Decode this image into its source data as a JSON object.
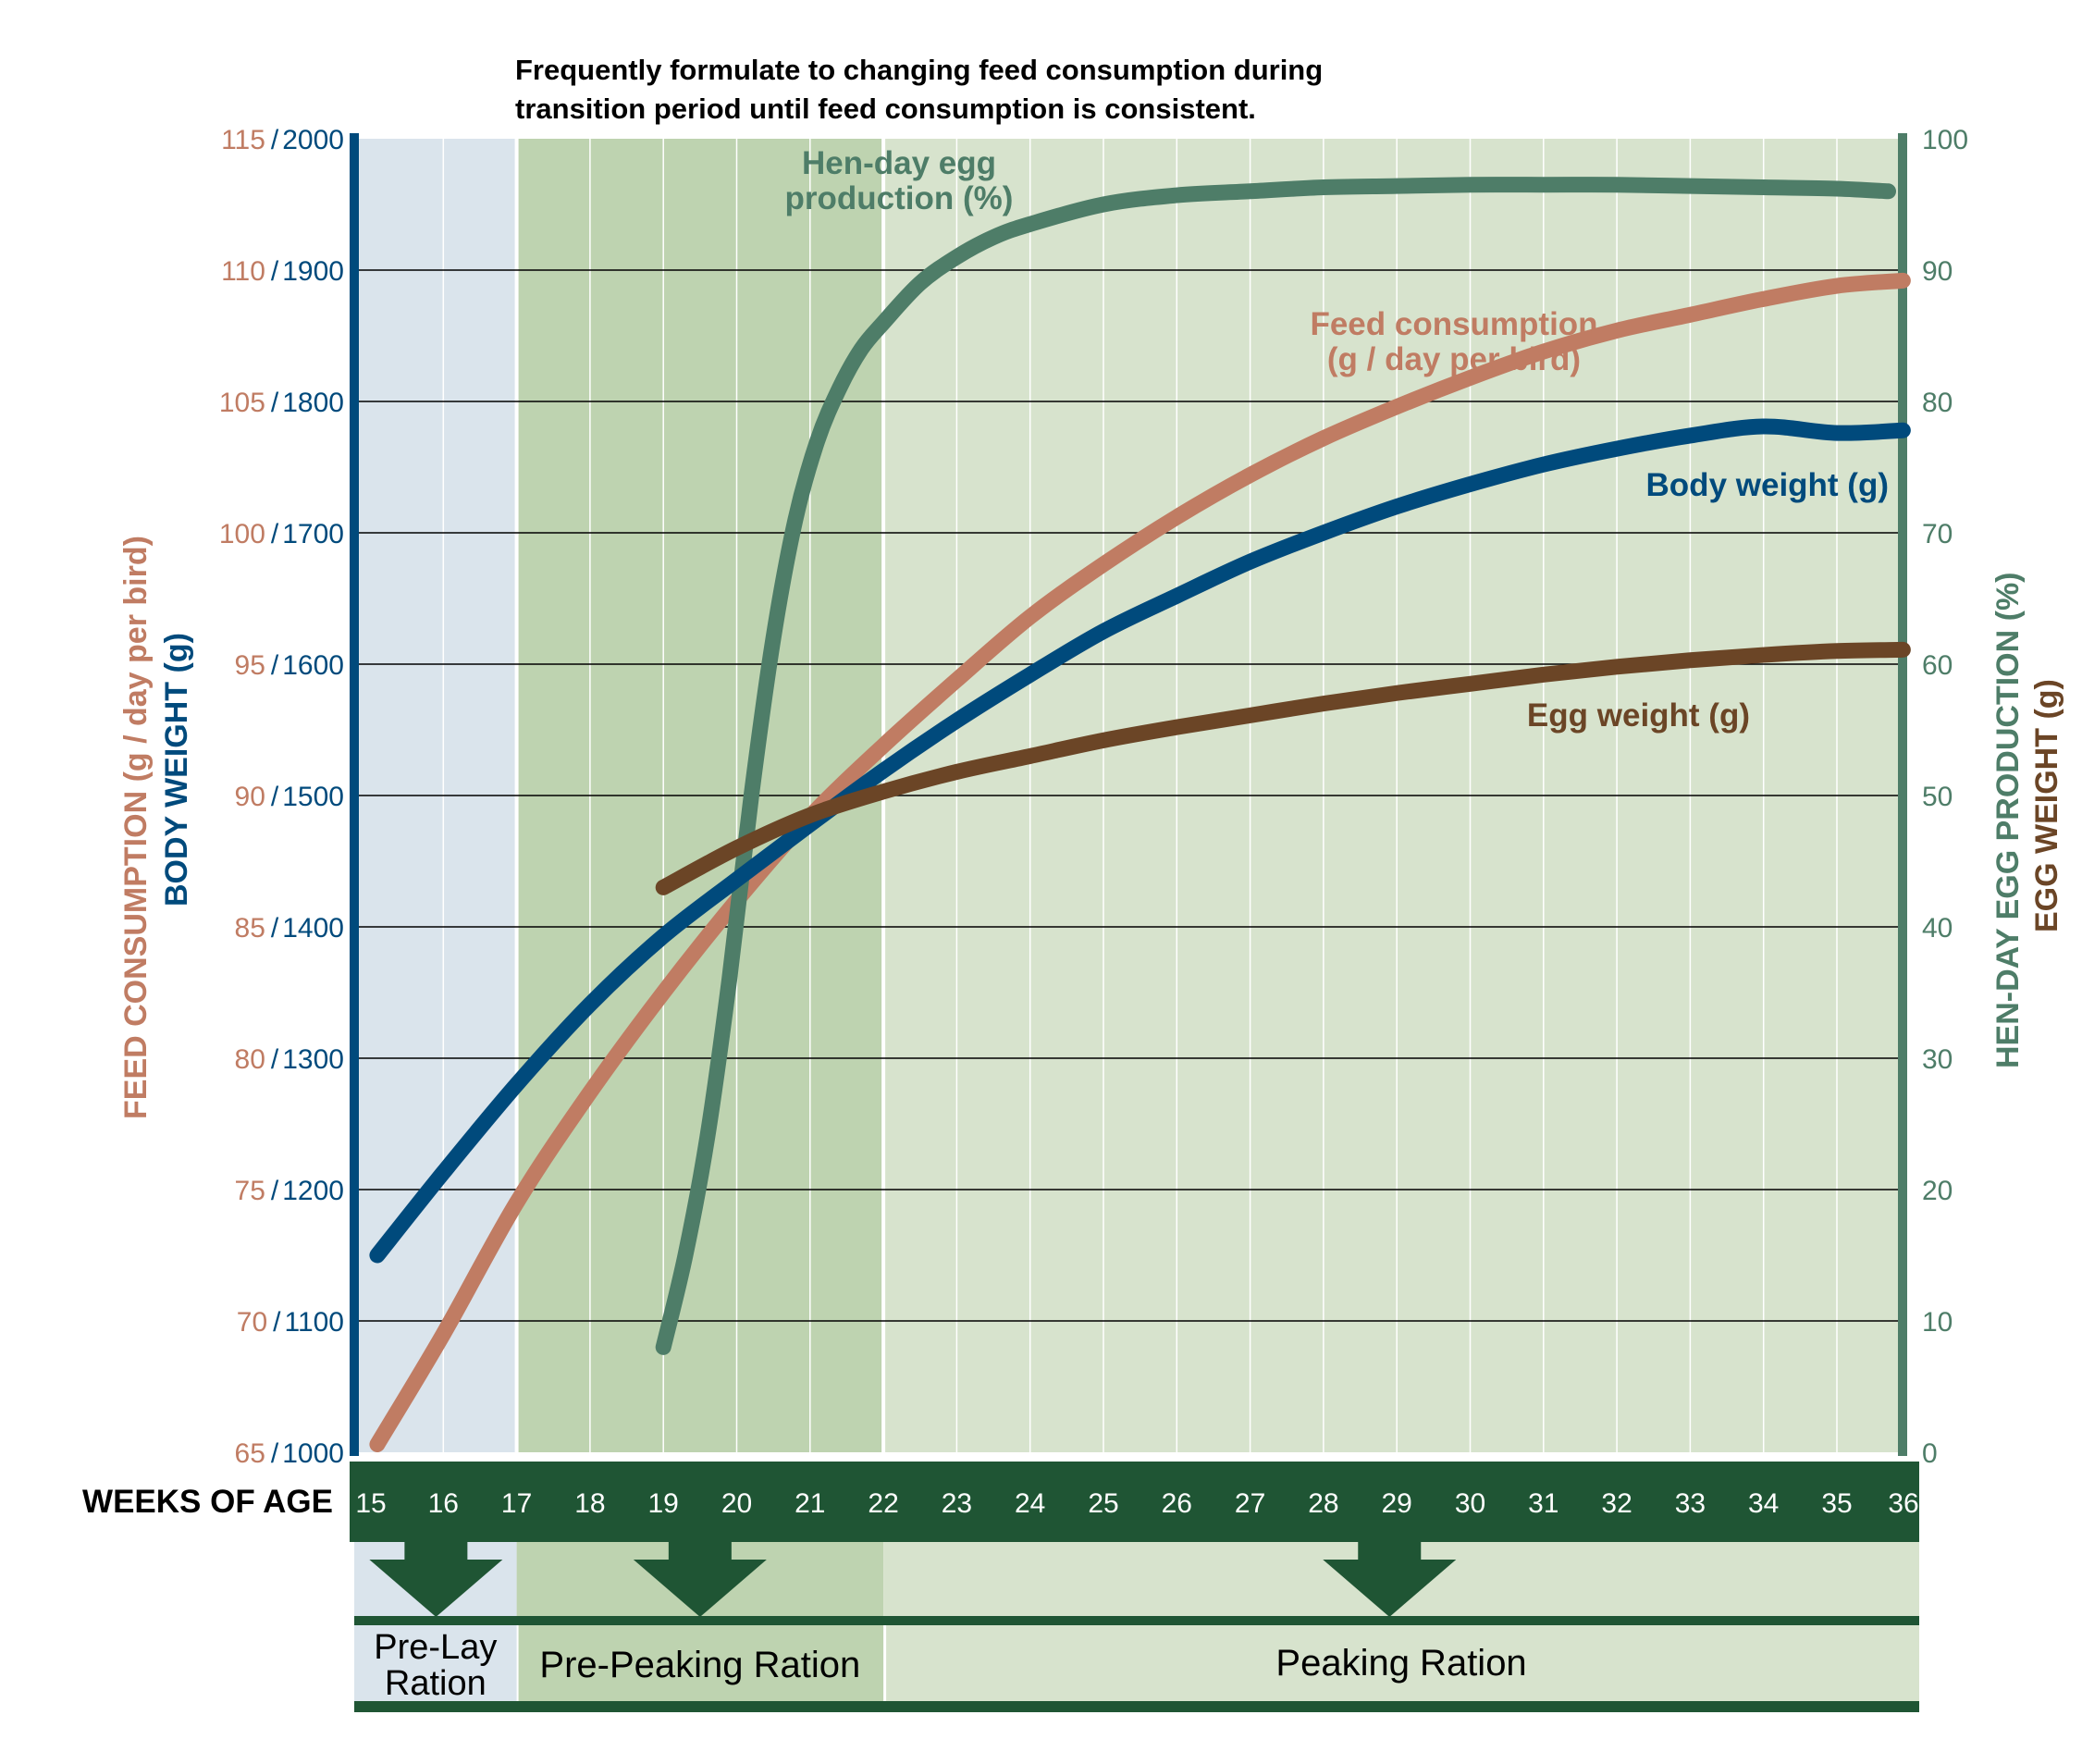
{
  "note": {
    "line1": "Frequently formulate to changing feed consumption during",
    "line2": "transition period until feed consumption is consistent."
  },
  "colors": {
    "feed": "#c07c63",
    "body": "#004a7c",
    "hen": "#4e7d68",
    "egg": "#6b4526",
    "dark_green": "#1f5534",
    "prelay_bg": "#dae4ec",
    "prepeak_bg": "#bed3b0",
    "peak_bg": "#d7e3cd",
    "grid": "#000000",
    "white": "#ffffff"
  },
  "axes": {
    "x_title": "WEEKS OF AGE",
    "left_title_feed": "FEED CONSUMPTION (g / day per bird)",
    "left_title_body": "BODY WEIGHT (g)",
    "right_title_hen": "HEN-DAY EGG PRODUCTION (%)",
    "right_title_egg": "EGG WEIGHT (g)",
    "separator": "/"
  },
  "chart_data": {
    "type": "line",
    "title": "",
    "xlabel": "WEEKS OF AGE",
    "x_ticks": [
      "15",
      "16",
      "17",
      "18",
      "19",
      "20",
      "21",
      "22",
      "23",
      "24",
      "25",
      "26",
      "27",
      "28",
      "29",
      "30",
      "31",
      "32",
      "33",
      "34",
      "35",
      "36"
    ],
    "xlim": [
      15,
      36.2
    ],
    "left_feed_ticks": [
      "115",
      "110",
      "105",
      "100",
      "95",
      "90",
      "85",
      "80",
      "75",
      "70",
      "65"
    ],
    "left_body_ticks": [
      "2000",
      "1900",
      "1800",
      "1700",
      "1600",
      "1500",
      "1400",
      "1300",
      "1200",
      "1100",
      "1000"
    ],
    "right_ticks": [
      "100",
      "90",
      "80",
      "70",
      "60",
      "50",
      "40",
      "30",
      "20",
      "10",
      "0"
    ],
    "ylim_feed": [
      65,
      115
    ],
    "ylim_body": [
      1000,
      2000
    ],
    "ylim_right": [
      0,
      100
    ],
    "grid": true,
    "regions": [
      {
        "label": "Pre-Lay Ration",
        "line1": "Pre-Lay",
        "line2": "Ration",
        "from": 15,
        "to": 17
      },
      {
        "label": "Pre-Peaking Ration",
        "from": 17,
        "to": 22
      },
      {
        "label": "Peaking Ration",
        "from": 22,
        "to": 36.2
      }
    ],
    "arrows_at_weeks": [
      15.9,
      19.5,
      28.9
    ],
    "series": [
      {
        "name": "Feed consumption (g / day per bird)",
        "label_line1": "Feed consumption",
        "label_line2": "(g / day per bird)",
        "axis": "feed",
        "x": [
          15.1,
          16,
          17,
          18,
          19,
          20,
          21,
          22,
          23,
          24,
          25,
          26,
          27,
          28,
          29,
          30,
          31,
          32,
          33,
          34,
          35,
          35.9
        ],
        "y": [
          65.3,
          69.5,
          74.5,
          78.7,
          82.5,
          86,
          89.2,
          91.9,
          94.4,
          96.8,
          98.8,
          100.6,
          102.2,
          103.6,
          104.8,
          105.9,
          106.9,
          107.7,
          108.3,
          108.9,
          109.4,
          109.6
        ]
      },
      {
        "name": "Body weight (g)",
        "axis": "body",
        "x": [
          15.1,
          16,
          17,
          18,
          19,
          20,
          21,
          22,
          23,
          24,
          25,
          26,
          27,
          28,
          29,
          30,
          31,
          32,
          33,
          34,
          35,
          35.9
        ],
        "y": [
          1150,
          1213,
          1280,
          1341,
          1393,
          1436,
          1478,
          1519,
          1557,
          1592,
          1625,
          1652,
          1678,
          1700,
          1720,
          1737,
          1752,
          1764,
          1774,
          1781,
          1687,
          1687
        ]
      },
      {
        "name": "Hen-day egg production (%)",
        "label_line1": "Hen-day egg",
        "label_line2": "production (%)",
        "axis": "right",
        "x": [
          19,
          19.3,
          19.6,
          19.9,
          20.2,
          20.5,
          20.8,
          21.1,
          21.4,
          21.7,
          22,
          22.5,
          23,
          23.5,
          24,
          25,
          26,
          27,
          28,
          29,
          30,
          31,
          32,
          33,
          34,
          35,
          35.7
        ],
        "y": [
          8,
          15,
          24,
          36,
          50,
          62,
          71,
          77,
          81,
          84,
          86,
          89,
          91,
          92.5,
          93.5,
          95,
          95.7,
          96,
          96.3,
          96.4,
          96.5,
          96.5,
          96.5,
          96.4,
          96.3,
          96.2,
          96
        ]
      },
      {
        "name": "Egg weight (g)",
        "axis": "right",
        "x": [
          19,
          20,
          21,
          22,
          23,
          24,
          25,
          26,
          27,
          28,
          29,
          30,
          31,
          32,
          33,
          34,
          35,
          35.9
        ],
        "y": [
          43,
          46,
          48.5,
          50.3,
          51.8,
          53,
          54.2,
          55.2,
          56.1,
          57,
          57.8,
          58.5,
          59.2,
          59.8,
          60.3,
          60.7,
          61,
          61.1
        ]
      }
    ]
  }
}
